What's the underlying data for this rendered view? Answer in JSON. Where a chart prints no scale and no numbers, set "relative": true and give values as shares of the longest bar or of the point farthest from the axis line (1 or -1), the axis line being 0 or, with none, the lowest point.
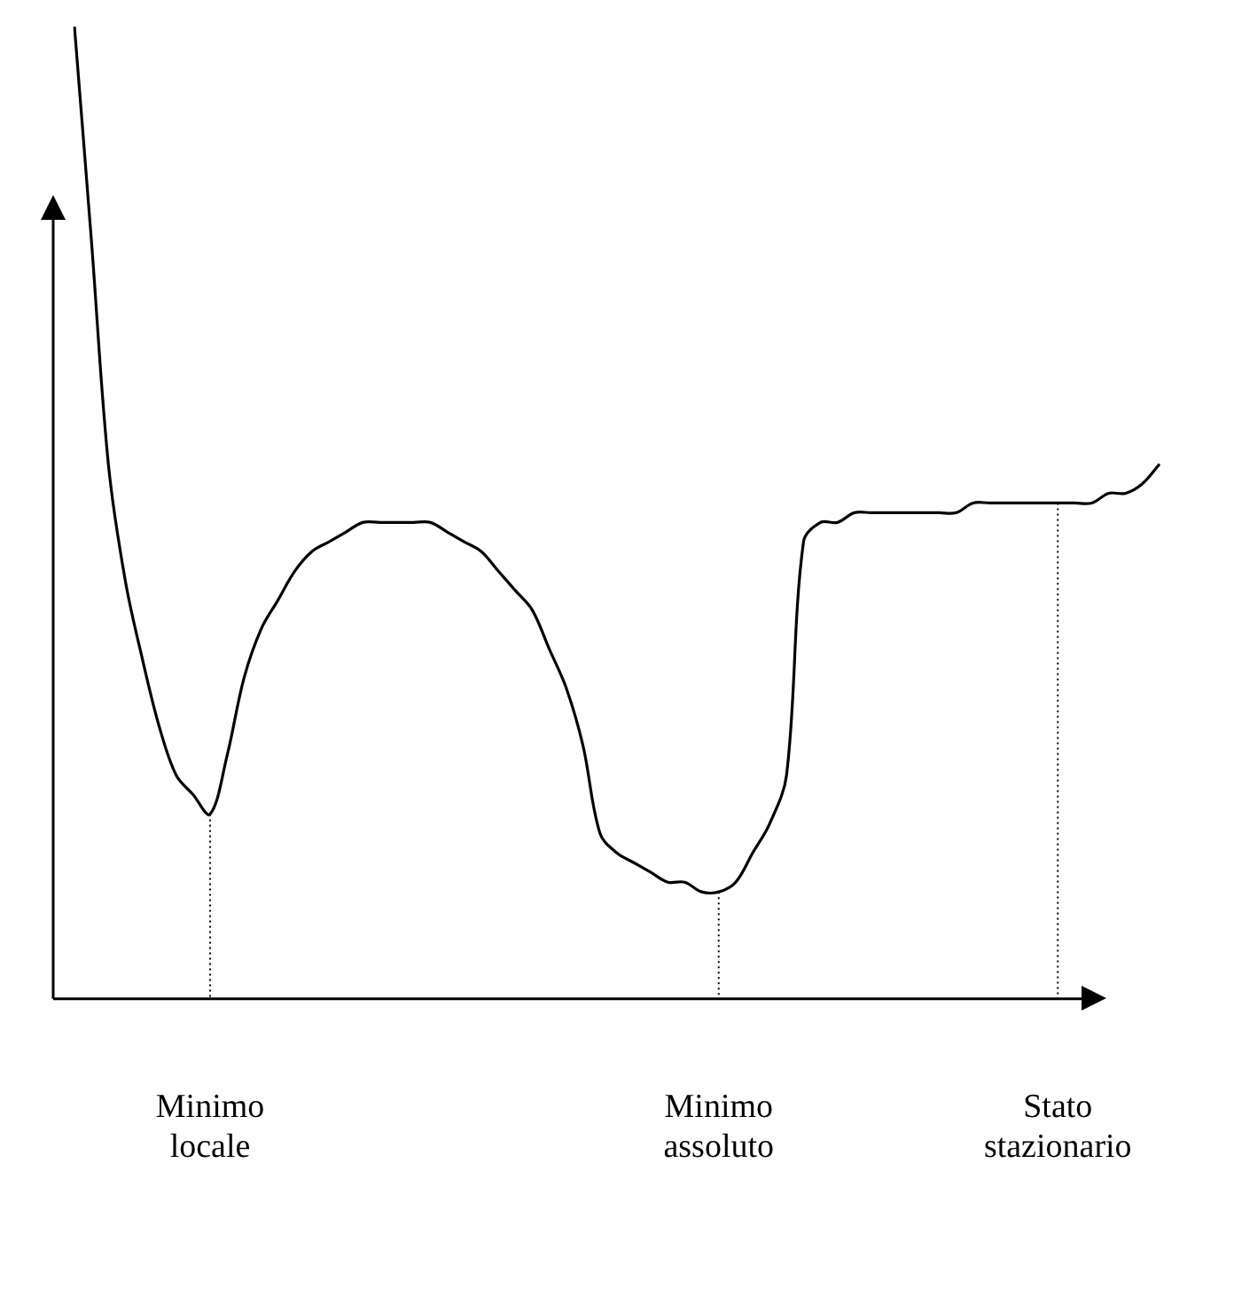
{
  "chart_data": {
    "type": "line",
    "relative": true,
    "legend": false,
    "ref_lines": [
      {
        "axis": "x",
        "value": "Minimo locale",
        "line_style": "dotted"
      },
      {
        "axis": "x",
        "value": "Minimo assoluto",
        "line_style": "dotted"
      },
      {
        "axis": "x",
        "value": "Stato stazionario",
        "line_style": "dotted"
      }
    ],
    "marker": "none",
    "color": "#000000",
    "categories": [
      null,
      null,
      null,
      null,
      null,
      null,
      null,
      null,
      "Minimo locale",
      null,
      null,
      null,
      null,
      null,
      null,
      null,
      null,
      null,
      null,
      null,
      null,
      null,
      null,
      null,
      null,
      null,
      null,
      null,
      null,
      null,
      null,
      null,
      null,
      null,
      null,
      null,
      null,
      null,
      "Minimo assoluto",
      null,
      null,
      null,
      null,
      null,
      null,
      null,
      null,
      null,
      null,
      null,
      null,
      null,
      null,
      null,
      null,
      null,
      null,
      null,
      "Stato stazionario",
      null,
      null,
      null,
      null,
      null,
      null
    ],
    "values": [
      1.0,
      0.78,
      0.55,
      0.43,
      0.35,
      0.28,
      0.23,
      0.21,
      0.19,
      0.25,
      0.33,
      0.38,
      0.41,
      0.44,
      0.46,
      0.47,
      0.48,
      0.49,
      0.49,
      0.49,
      0.49,
      0.49,
      0.48,
      0.47,
      0.46,
      0.44,
      0.42,
      0.4,
      0.36,
      0.32,
      0.26,
      0.17,
      0.15,
      0.14,
      0.13,
      0.12,
      0.12,
      0.11,
      0.11,
      0.12,
      0.15,
      0.18,
      0.23,
      0.47,
      0.49,
      0.49,
      0.5,
      0.5,
      0.5,
      0.5,
      0.5,
      0.5,
      0.5,
      0.51,
      0.51,
      0.51,
      0.51,
      0.51,
      0.51,
      0.51,
      0.51,
      0.52,
      0.52,
      0.53,
      0.55
    ]
  }
}
